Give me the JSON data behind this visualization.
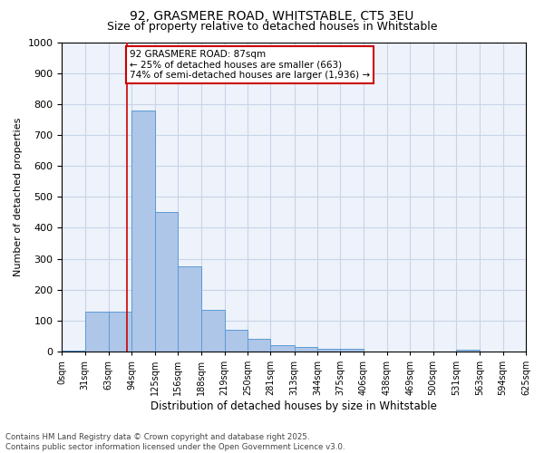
{
  "title_line1": "92, GRASMERE ROAD, WHITSTABLE, CT5 3EU",
  "title_line2": "Size of property relative to detached houses in Whitstable",
  "xlabel": "Distribution of detached houses by size in Whitstable",
  "ylabel": "Number of detached properties",
  "bar_color": "#aec6e8",
  "bar_edge_color": "#5b9bd5",
  "background_color": "#eef2fa",
  "grid_color": "#c8d4e8",
  "annotation_box_color": "#cc0000",
  "annotation_line_color": "#cc0000",
  "property_line_x": 87,
  "annotation_text": "92 GRASMERE ROAD: 87sqm\n← 25% of detached houses are smaller (663)\n74% of semi-detached houses are larger (1,936) →",
  "footer_line1": "Contains HM Land Registry data © Crown copyright and database right 2025.",
  "footer_line2": "Contains public sector information licensed under the Open Government Licence v3.0.",
  "bin_edges": [
    0,
    31,
    63,
    94,
    125,
    156,
    188,
    219,
    250,
    281,
    313,
    344,
    375,
    406,
    438,
    469,
    500,
    531,
    563,
    594,
    625
  ],
  "bin_labels": [
    "0sqm",
    "31sqm",
    "63sqm",
    "94sqm",
    "125sqm",
    "156sqm",
    "188sqm",
    "219sqm",
    "250sqm",
    "281sqm",
    "313sqm",
    "344sqm",
    "375sqm",
    "406sqm",
    "438sqm",
    "469sqm",
    "500sqm",
    "531sqm",
    "563sqm",
    "594sqm",
    "625sqm"
  ],
  "counts": [
    2,
    130,
    130,
    780,
    450,
    275,
    135,
    70,
    40,
    20,
    15,
    10,
    10,
    0,
    0,
    0,
    0,
    5,
    0,
    0
  ],
  "ylim": [
    0,
    1000
  ],
  "yticks": [
    0,
    100,
    200,
    300,
    400,
    500,
    600,
    700,
    800,
    900,
    1000
  ]
}
